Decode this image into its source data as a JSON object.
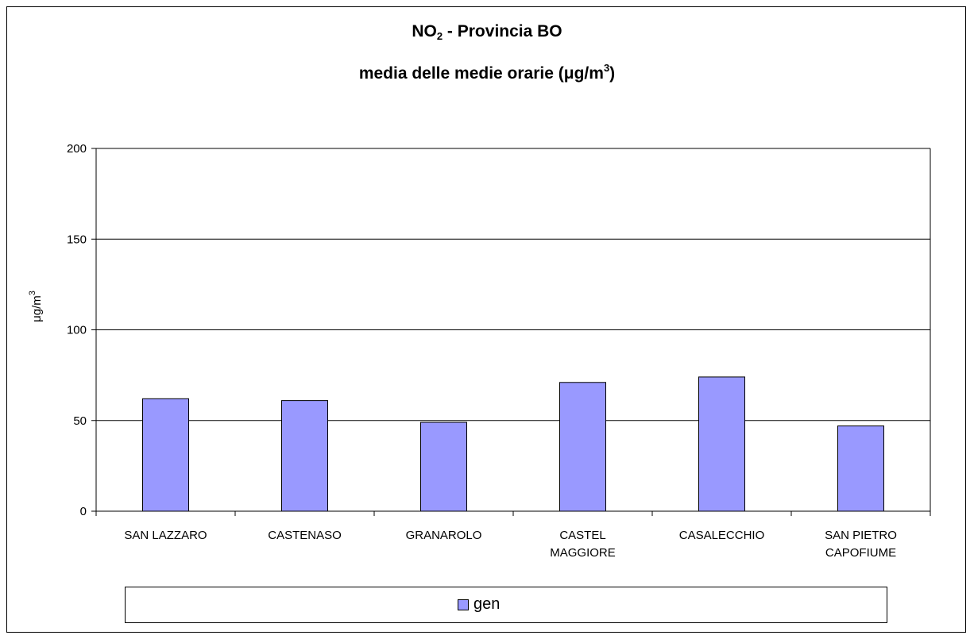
{
  "chart_data": {
    "type": "bar",
    "title_main": "NO",
    "title_sub": "2",
    "title_rest": " - Provincia BO",
    "subtitle_main": "media delle medie orarie (μg/m",
    "subtitle_sup": "3",
    "subtitle_end": ")",
    "ylabel_main": "μg/m",
    "ylabel_sup": "3",
    "xlabel": "",
    "ylim": [
      0,
      200
    ],
    "yticks": [
      0,
      50,
      100,
      150,
      200
    ],
    "categories": [
      [
        "SAN LAZZARO"
      ],
      [
        "CASTENASO"
      ],
      [
        "GRANAROLO"
      ],
      [
        "CASTEL",
        "MAGGIORE"
      ],
      [
        "CASALECCHIO"
      ],
      [
        "SAN PIETRO",
        "CAPOFIUME"
      ]
    ],
    "series": [
      {
        "name": "gen",
        "values": [
          62,
          61,
          49,
          71,
          74,
          47
        ]
      }
    ],
    "colors": {
      "bar": "#9999FF",
      "bar_stroke": "#000000",
      "grid": "#000000"
    },
    "grid": true,
    "legend_position": "bottom"
  }
}
